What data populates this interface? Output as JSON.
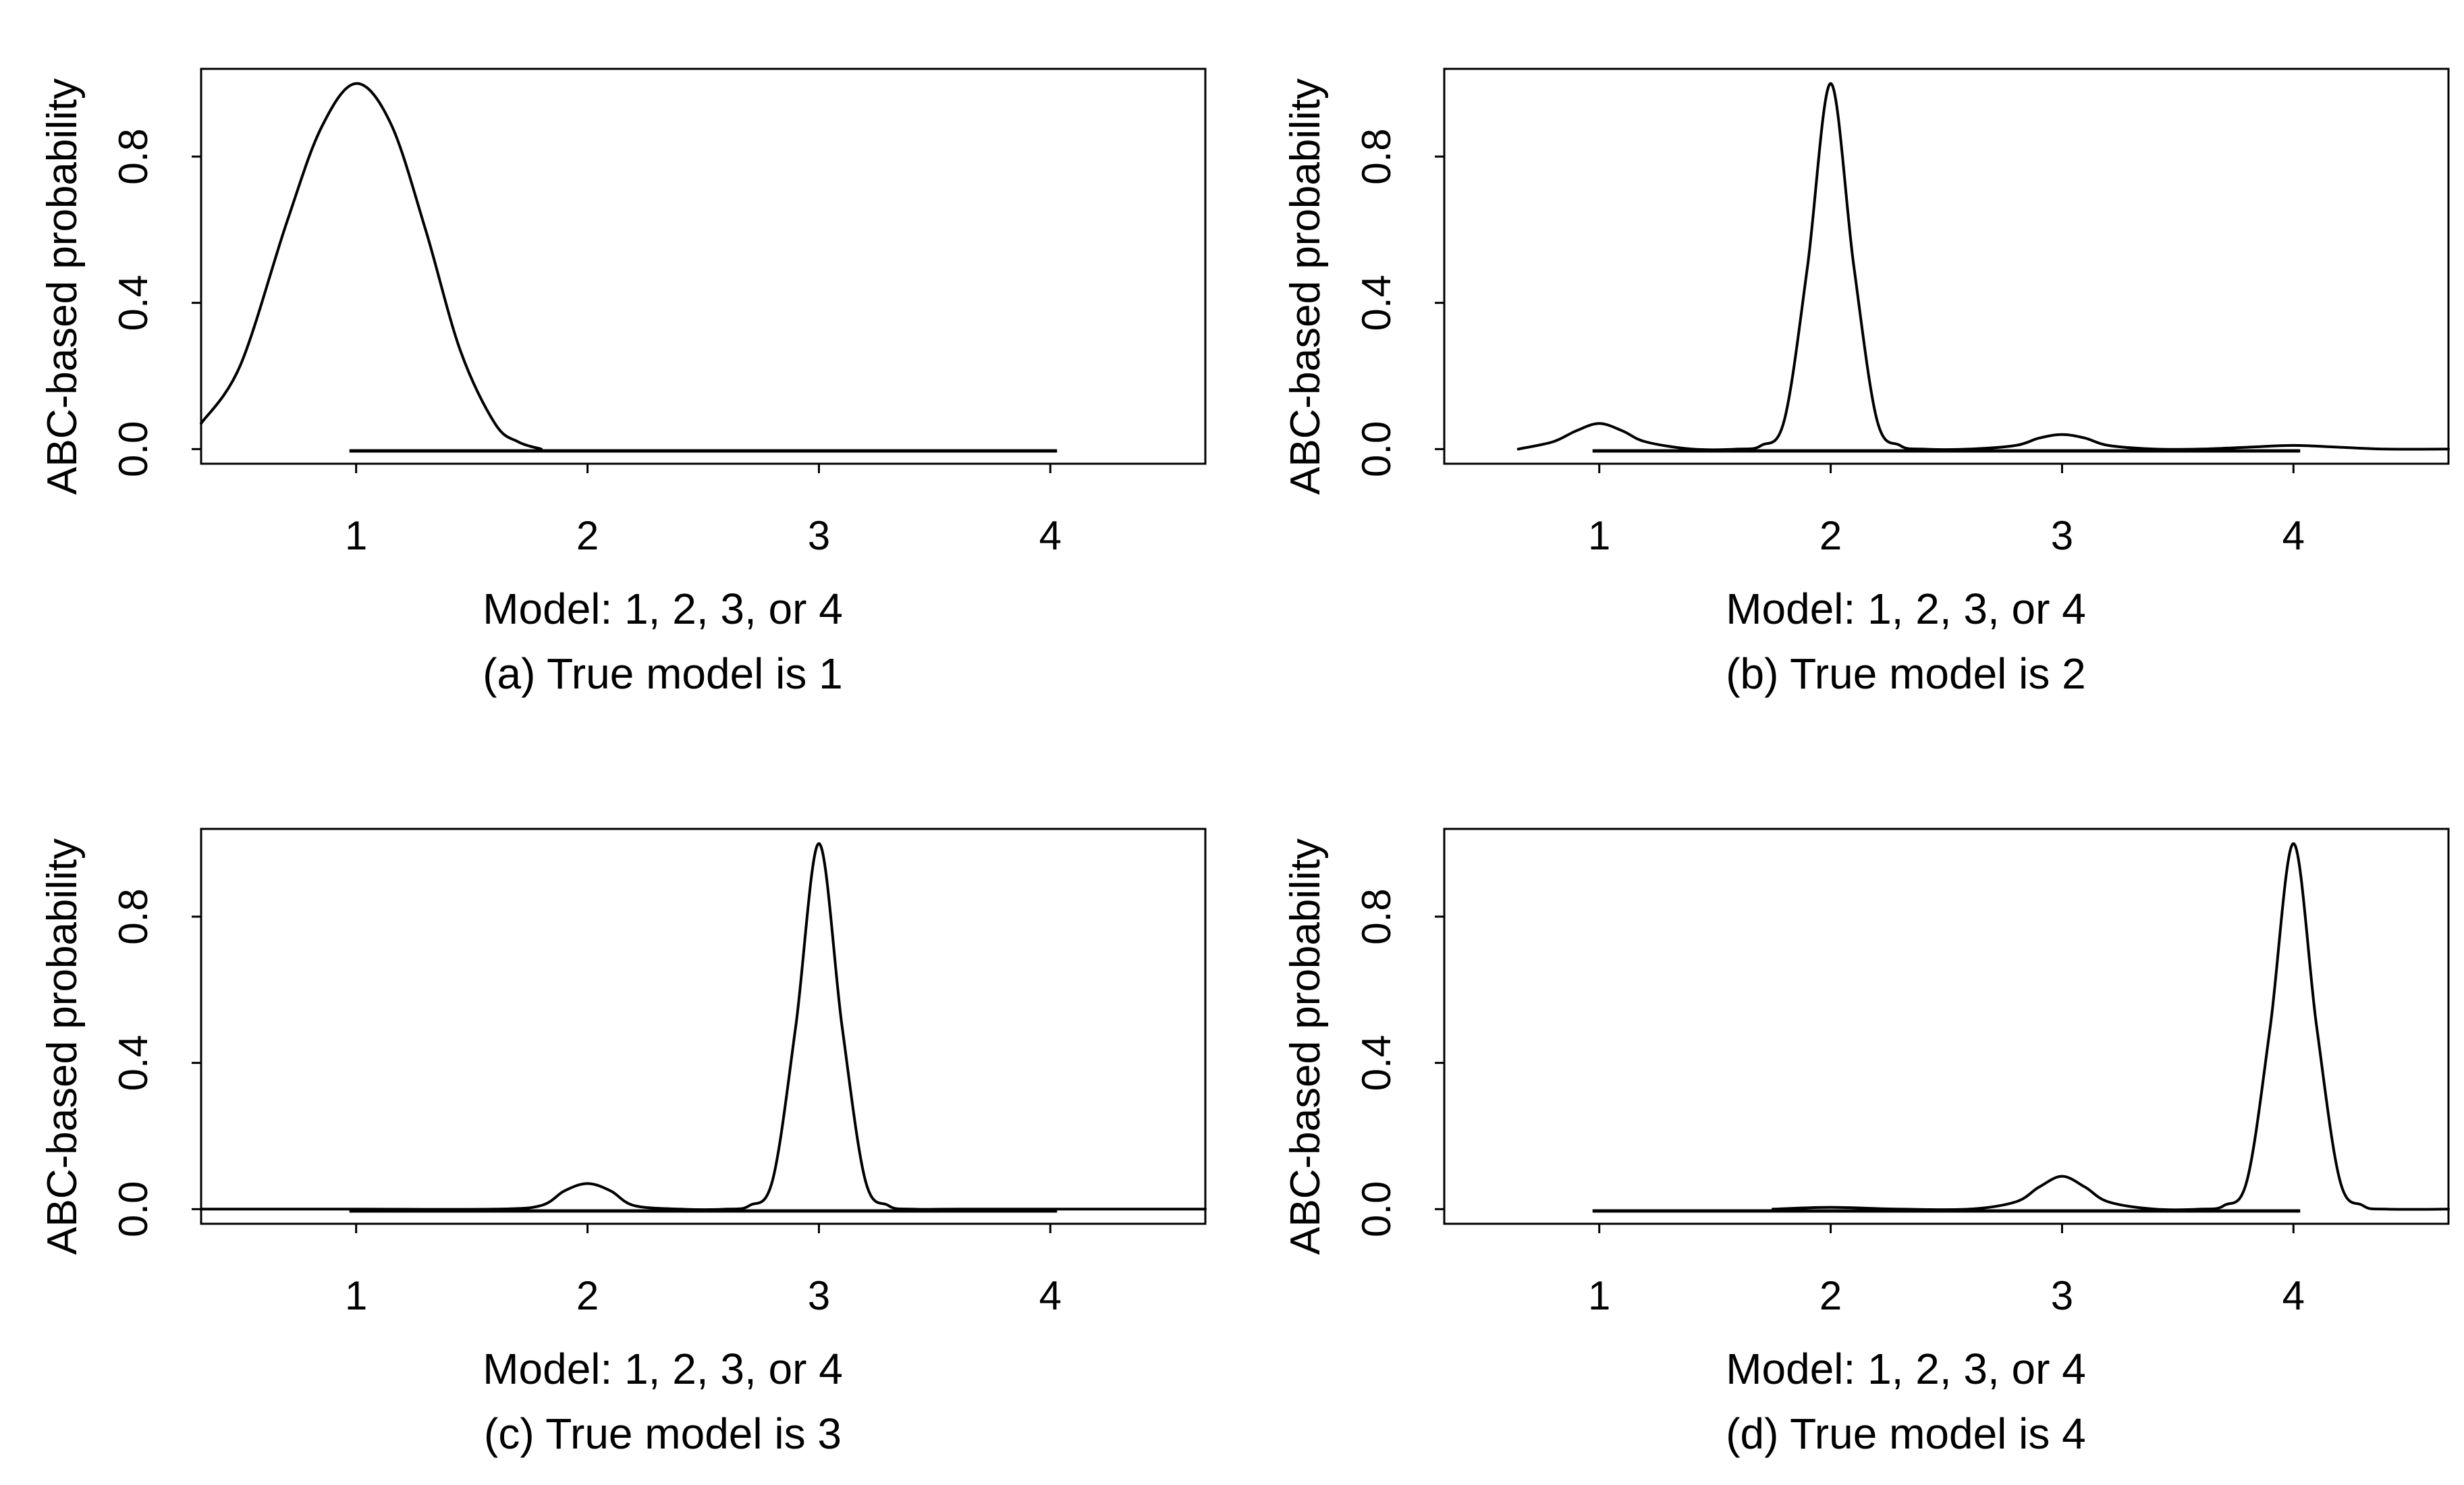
{
  "chart_data": [
    {
      "type": "line",
      "caption": "(a) True model is 1",
      "xlabel": "Model: 1, 2, 3, or 4",
      "ylabel": "ABC-based probability",
      "x_ticks": [
        "1",
        "2",
        "3",
        "4"
      ],
      "y_ticks": [
        "0.0",
        "0.4",
        "0.8"
      ],
      "xlim": [
        0.33,
        4.67
      ],
      "ylim": [
        -0.04,
        1.04
      ],
      "x": [
        0.33,
        0.5,
        0.7,
        0.85,
        1.0,
        1.15,
        1.3,
        1.45,
        1.6,
        1.7,
        1.8
      ],
      "y": [
        0.07,
        0.23,
        0.62,
        0.88,
        1.0,
        0.89,
        0.6,
        0.27,
        0.07,
        0.02,
        0.0
      ]
    },
    {
      "type": "line",
      "caption": "(b) True model is 2",
      "xlabel": "Model: 1, 2, 3, or 4",
      "ylabel": "ABC-based probability",
      "x_ticks": [
        "1",
        "2",
        "3",
        "4"
      ],
      "y_ticks": [
        "0.0",
        "0.4",
        "0.8"
      ],
      "xlim": [
        0.33,
        4.67
      ],
      "ylim": [
        -0.04,
        1.04
      ],
      "x": [
        0.65,
        0.8,
        0.9,
        1.0,
        1.1,
        1.2,
        1.4,
        1.6,
        1.7,
        1.8,
        1.9,
        2.0,
        2.1,
        2.2,
        2.3,
        2.4,
        2.6,
        2.8,
        2.9,
        3.0,
        3.1,
        3.2,
        3.4,
        3.6,
        3.8,
        4.0,
        4.2,
        4.4,
        4.67
      ],
      "y": [
        0.0,
        0.02,
        0.05,
        0.07,
        0.05,
        0.02,
        0.0,
        0.0,
        0.01,
        0.08,
        0.5,
        1.0,
        0.5,
        0.08,
        0.01,
        0.0,
        0.0,
        0.01,
        0.03,
        0.04,
        0.03,
        0.01,
        0.0,
        0.0,
        0.005,
        0.01,
        0.005,
        0.0,
        0.0
      ]
    },
    {
      "type": "line",
      "caption": "(c) True model is 3",
      "xlabel": "Model: 1, 2, 3, or 4",
      "ylabel": "ABC-based probability",
      "x_ticks": [
        "1",
        "2",
        "3",
        "4"
      ],
      "y_ticks": [
        "0.0",
        "0.4",
        "0.8"
      ],
      "xlim": [
        0.33,
        4.67
      ],
      "ylim": [
        -0.04,
        1.04
      ],
      "x": [
        0.33,
        1.0,
        1.6,
        1.8,
        1.9,
        2.0,
        2.1,
        2.2,
        2.4,
        2.6,
        2.7,
        2.8,
        2.9,
        3.0,
        3.1,
        3.2,
        3.3,
        3.4,
        3.6,
        4.0,
        4.67
      ],
      "y": [
        0.0,
        0.0,
        0.0,
        0.01,
        0.05,
        0.07,
        0.05,
        0.01,
        0.0,
        0.0,
        0.01,
        0.08,
        0.5,
        1.0,
        0.5,
        0.08,
        0.01,
        0.0,
        0.0,
        0.0,
        0.0
      ]
    },
    {
      "type": "line",
      "caption": "(d) True model is 4",
      "xlabel": "Model: 1, 2, 3, or 4",
      "ylabel": "ABC-based probability",
      "x_ticks": [
        "1",
        "2",
        "3",
        "4"
      ],
      "y_ticks": [
        "0.0",
        "0.4",
        "0.8"
      ],
      "xlim": [
        0.33,
        4.67
      ],
      "ylim": [
        -0.04,
        1.04
      ],
      "x": [
        1.75,
        2.0,
        2.3,
        2.6,
        2.8,
        2.9,
        3.0,
        3.1,
        3.2,
        3.4,
        3.6,
        3.7,
        3.8,
        3.9,
        4.0,
        4.1,
        4.2,
        4.3,
        4.4,
        4.67
      ],
      "y": [
        0.0,
        0.005,
        0.0,
        0.0,
        0.02,
        0.06,
        0.09,
        0.06,
        0.02,
        0.0,
        0.0,
        0.01,
        0.08,
        0.5,
        1.0,
        0.5,
        0.08,
        0.01,
        0.0,
        0.0
      ]
    }
  ]
}
